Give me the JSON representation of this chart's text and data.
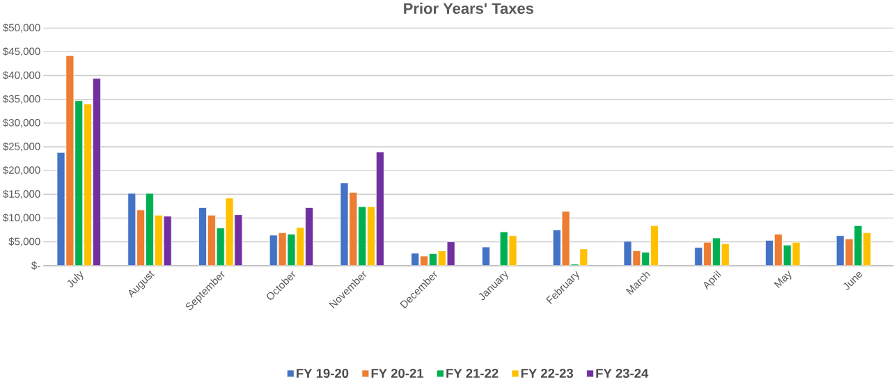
{
  "chart_data": {
    "type": "bar",
    "title": "Prior Years' Taxes",
    "categories": [
      "July",
      "August",
      "September",
      "October",
      "November",
      "December",
      "January",
      "February",
      "March",
      "April",
      "May",
      "June"
    ],
    "series": [
      {
        "name": "FY 19-20",
        "color": "#4472c4",
        "values": [
          23800,
          15200,
          12200,
          6400,
          17400,
          2600,
          3900,
          7500,
          5100,
          3800,
          5300,
          6300
        ]
      },
      {
        "name": "FY 20-21",
        "color": "#ed7d31",
        "values": [
          44200,
          11700,
          10600,
          6900,
          15400,
          2000,
          null,
          11400,
          3100,
          4900,
          6600,
          5600
        ]
      },
      {
        "name": "FY 21-22",
        "color": "#00b050",
        "values": [
          34700,
          15200,
          7900,
          6600,
          12400,
          2500,
          7100,
          300,
          2800,
          5800,
          4300,
          8400
        ]
      },
      {
        "name": "FY 22-23",
        "color": "#ffc000",
        "values": [
          34000,
          10600,
          14200,
          8000,
          12400,
          3100,
          6300,
          3500,
          8400,
          4600,
          4900,
          6900
        ]
      },
      {
        "name": "FY 23-24",
        "color": "#7030a0",
        "values": [
          39400,
          10400,
          10700,
          12200,
          23900,
          5000,
          null,
          null,
          null,
          null,
          null,
          null
        ]
      }
    ],
    "ylim": [
      0,
      50000
    ],
    "yticks": [
      {
        "value": 0,
        "label": "$-"
      },
      {
        "value": 5000,
        "label": "$5,000"
      },
      {
        "value": 10000,
        "label": "$10,000"
      },
      {
        "value": 15000,
        "label": "$15,000"
      },
      {
        "value": 20000,
        "label": "$20,000"
      },
      {
        "value": 25000,
        "label": "$25,000"
      },
      {
        "value": 30000,
        "label": "$30,000"
      },
      {
        "value": 35000,
        "label": "$35,000"
      },
      {
        "value": 40000,
        "label": "$40,000"
      },
      {
        "value": 45000,
        "label": "$45,000"
      },
      {
        "value": 50000,
        "label": "$50,000"
      }
    ],
    "grid": "y",
    "legend": "bottom"
  }
}
